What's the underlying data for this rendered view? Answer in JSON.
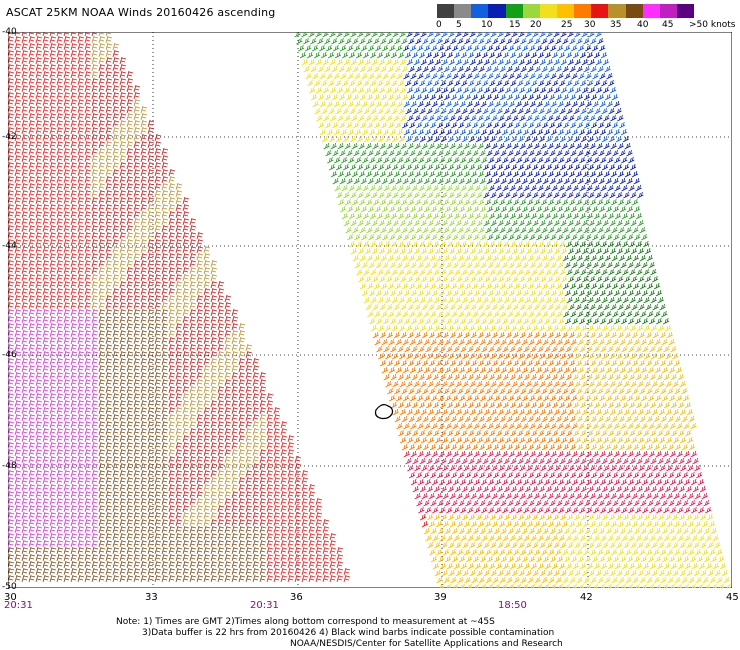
{
  "title": "ASCAT 25KM NOAA Winds 20160426 ascending",
  "colorbar": {
    "colors": [
      "#404040",
      "#8a8a8a",
      "#1060e0",
      "#0a1fb0",
      "#14a014",
      "#9ad83c",
      "#f0e020",
      "#ffc000",
      "#ff7a00",
      "#e81414",
      "#b8902c",
      "#7a4a14",
      "#ff30ff",
      "#c020c0",
      "#5a0080"
    ],
    "ticks": [
      "0",
      "5",
      "10",
      "15",
      "20",
      "25",
      "30",
      "35",
      "40",
      "45"
    ],
    "units": ">50 knots"
  },
  "x_axis_labels": [
    "30",
    "33",
    "36",
    "39",
    "42",
    "45"
  ],
  "y_axis_labels": [
    "-40",
    "-42",
    "-44",
    "-46",
    "-48",
    "-50"
  ],
  "time_labels": [
    "20:31",
    "20:31",
    "18:50"
  ],
  "notes": [
    "Note: 1) Times are GMT 2)Times along bottom correspond to measurement at ~45S",
    "3)Data buffer is 22 hrs from 20160426 4) Black wind barbs indicate possible contamination",
    "NOAA/NESDIS/Center for Satellite Applications and Research"
  ],
  "map": {
    "lon_range": [
      30,
      45
    ],
    "lat_range": [
      -50,
      -40
    ]
  }
}
